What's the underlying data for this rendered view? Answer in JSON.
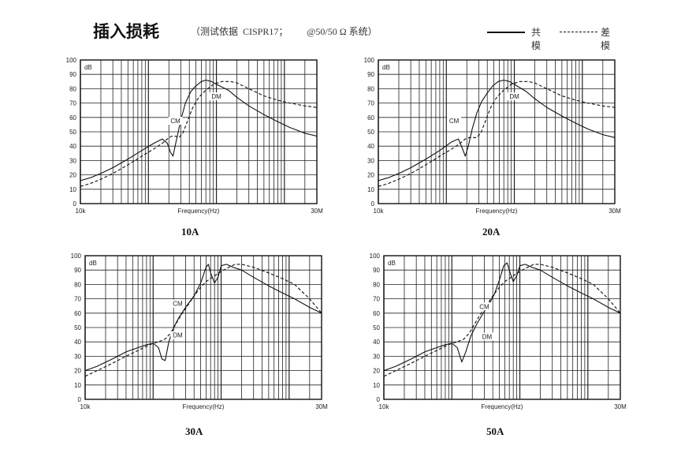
{
  "header": {
    "title": "插入损耗",
    "basis": "（测试依据  CISPR17；        @50/50 Ω 系统）",
    "legend_cm": "共模",
    "legend_dm": "差模"
  },
  "chart_data": [
    {
      "type": "line",
      "caption": "10A",
      "xlabel": "Frequency(Hz)",
      "ylabel": "dB",
      "x_scale": "log",
      "xlim": [
        10000,
        30000000
      ],
      "ylim": [
        0,
        100
      ],
      "x_tick_labels": [
        "10k",
        "30M"
      ],
      "y_ticks": [
        0,
        10,
        20,
        30,
        40,
        50,
        60,
        70,
        80,
        90,
        100
      ],
      "grid": true,
      "annotations": [
        {
          "text": "CM",
          "x": 250000,
          "y": 56
        },
        {
          "text": "DM",
          "x": 1000000,
          "y": 73
        }
      ],
      "series": [
        {
          "name": "CM",
          "style": "solid",
          "x": [
            10000,
            14000,
            20000,
            30000,
            50000,
            80000,
            120000,
            160000,
            190000,
            210000,
            230000,
            260000,
            300000,
            350000,
            420000,
            500000,
            600000,
            700000,
            850000,
            1000000,
            1500000,
            2000000,
            3000000,
            5000000,
            8000000,
            12000000,
            20000000,
            30000000
          ],
          "y": [
            16,
            18,
            21,
            25,
            31,
            37,
            42,
            45,
            42,
            36,
            33,
            45,
            58,
            70,
            78,
            82,
            85,
            86,
            85,
            83,
            79,
            74,
            68,
            62,
            57,
            53,
            49,
            47
          ]
        },
        {
          "name": "DM",
          "style": "dashed",
          "x": [
            10000,
            14000,
            20000,
            30000,
            50000,
            80000,
            120000,
            160000,
            190000,
            220000,
            250000,
            280000,
            320000,
            380000,
            450000,
            550000,
            700000,
            900000,
            1200000,
            1600000,
            2000000,
            3000000,
            5000000,
            8000000,
            12000000,
            20000000,
            30000000
          ],
          "y": [
            12,
            14,
            17,
            21,
            27,
            33,
            38,
            42,
            45,
            47,
            47,
            46,
            49,
            58,
            67,
            74,
            79,
            83,
            85,
            85,
            84,
            80,
            75,
            72,
            70,
            68,
            67
          ]
        }
      ]
    },
    {
      "type": "line",
      "caption": "20A",
      "xlabel": "Frequency(Hz)",
      "ylabel": "dB",
      "x_scale": "log",
      "xlim": [
        10000,
        30000000
      ],
      "ylim": [
        0,
        100
      ],
      "x_tick_labels": [
        "10k",
        "30M"
      ],
      "y_ticks": [
        0,
        10,
        20,
        30,
        40,
        50,
        60,
        70,
        80,
        90,
        100
      ],
      "grid": true,
      "annotations": [
        {
          "text": "CM",
          "x": 130000,
          "y": 56
        },
        {
          "text": "DM",
          "x": 1000000,
          "y": 73
        }
      ],
      "series": [
        {
          "name": "CM",
          "style": "solid",
          "x": [
            10000,
            14000,
            20000,
            30000,
            50000,
            80000,
            120000,
            150000,
            170000,
            190000,
            210000,
            240000,
            280000,
            330000,
            400000,
            480000,
            580000,
            700000,
            850000,
            1000000,
            1500000,
            2000000,
            3000000,
            5000000,
            8000000,
            12000000,
            20000000,
            30000000
          ],
          "y": [
            16,
            18,
            21,
            25,
            31,
            37,
            43,
            45,
            39,
            33,
            40,
            52,
            63,
            71,
            77,
            82,
            85,
            86,
            85,
            83,
            78,
            73,
            67,
            61,
            56,
            52,
            48,
            46
          ]
        },
        {
          "name": "DM",
          "style": "dashed",
          "x": [
            10000,
            14000,
            20000,
            30000,
            50000,
            80000,
            120000,
            160000,
            190000,
            220000,
            250000,
            280000,
            320000,
            380000,
            450000,
            550000,
            700000,
            900000,
            1200000,
            1600000,
            2000000,
            3000000,
            5000000,
            8000000,
            12000000,
            20000000,
            30000000
          ],
          "y": [
            12,
            14,
            17,
            21,
            27,
            33,
            38,
            42,
            45,
            46,
            46,
            46,
            49,
            58,
            67,
            74,
            79,
            83,
            85,
            85,
            84,
            80,
            75,
            72,
            70,
            68,
            67
          ]
        }
      ]
    },
    {
      "type": "line",
      "caption": "30A",
      "xlabel": "Frequency(Hz)",
      "ylabel": "dB",
      "x_scale": "log",
      "xlim": [
        10000,
        30000000
      ],
      "ylim": [
        0,
        100
      ],
      "x_tick_labels": [
        "10k",
        "30M"
      ],
      "y_ticks": [
        0,
        10,
        20,
        30,
        40,
        50,
        60,
        70,
        80,
        90,
        100
      ],
      "grid": true,
      "annotations": [
        {
          "text": "CM",
          "x": 230000,
          "y": 65
        },
        {
          "text": "DM",
          "x": 230000,
          "y": 43
        }
      ],
      "series": [
        {
          "name": "CM",
          "style": "solid",
          "x": [
            10000,
            15000,
            25000,
            40000,
            60000,
            80000,
            100000,
            120000,
            135000,
            150000,
            170000,
            200000,
            240000,
            300000,
            400000,
            500000,
            600000,
            650000,
            700000,
            800000,
            900000,
            1000000,
            1200000,
            1500000,
            2000000,
            3000000,
            5000000,
            8000000,
            12000000,
            20000000,
            30000000
          ],
          "y": [
            20,
            23,
            28,
            33,
            36,
            38,
            39,
            36,
            28,
            27,
            40,
            50,
            57,
            64,
            72,
            81,
            92,
            94,
            88,
            81,
            85,
            93,
            94,
            92,
            90,
            85,
            79,
            74,
            70,
            64,
            60
          ]
        },
        {
          "name": "DM",
          "style": "dashed",
          "x": [
            10000,
            15000,
            25000,
            40000,
            60000,
            80000,
            100000,
            120000,
            150000,
            180000,
            220000,
            260000,
            300000,
            400000,
            500000,
            600000,
            800000,
            1000000,
            1300000,
            1600000,
            2000000,
            3000000,
            5000000,
            8000000,
            12000000,
            20000000,
            30000000
          ],
          "y": [
            16,
            20,
            25,
            30,
            34,
            37,
            39,
            40,
            42,
            46,
            53,
            59,
            63,
            72,
            78,
            82,
            86,
            89,
            92,
            94,
            94,
            92,
            88,
            84,
            80,
            70,
            60
          ]
        }
      ]
    },
    {
      "type": "line",
      "caption": "50A",
      "xlabel": "Frequency(Hz)",
      "ylabel": "dB",
      "x_scale": "log",
      "xlim": [
        10000,
        30000000
      ],
      "ylim": [
        0,
        100
      ],
      "x_tick_labels": [
        "10k",
        "30M"
      ],
      "y_ticks": [
        0,
        10,
        20,
        30,
        40,
        50,
        60,
        70,
        80,
        90,
        100
      ],
      "grid": true,
      "annotations": [
        {
          "text": "CM",
          "x": 300000,
          "y": 63
        },
        {
          "text": "DM",
          "x": 330000,
          "y": 42
        }
      ],
      "series": [
        {
          "name": "CM",
          "style": "solid",
          "x": [
            10000,
            15000,
            25000,
            40000,
            60000,
            80000,
            100000,
            120000,
            140000,
            160000,
            190000,
            230000,
            280000,
            340000,
            420000,
            500000,
            580000,
            650000,
            720000,
            800000,
            900000,
            1000000,
            1200000,
            1500000,
            2000000,
            3000000,
            5000000,
            8000000,
            12000000,
            20000000,
            30000000
          ],
          "y": [
            20,
            23,
            28,
            33,
            36,
            38,
            39,
            36,
            26,
            33,
            44,
            52,
            59,
            65,
            73,
            83,
            93,
            95,
            88,
            82,
            86,
            93,
            94,
            92,
            90,
            85,
            79,
            74,
            70,
            64,
            60
          ]
        },
        {
          "name": "DM",
          "style": "dashed",
          "x": [
            10000,
            15000,
            25000,
            40000,
            60000,
            80000,
            100000,
            120000,
            150000,
            180000,
            220000,
            260000,
            300000,
            400000,
            500000,
            600000,
            800000,
            1000000,
            1300000,
            1600000,
            2000000,
            3000000,
            5000000,
            8000000,
            12000000,
            20000000,
            30000000
          ],
          "y": [
            16,
            20,
            25,
            30,
            34,
            37,
            39,
            40,
            42,
            46,
            53,
            59,
            63,
            72,
            78,
            82,
            86,
            89,
            92,
            94,
            94,
            92,
            88,
            84,
            80,
            70,
            60
          ]
        }
      ]
    }
  ]
}
